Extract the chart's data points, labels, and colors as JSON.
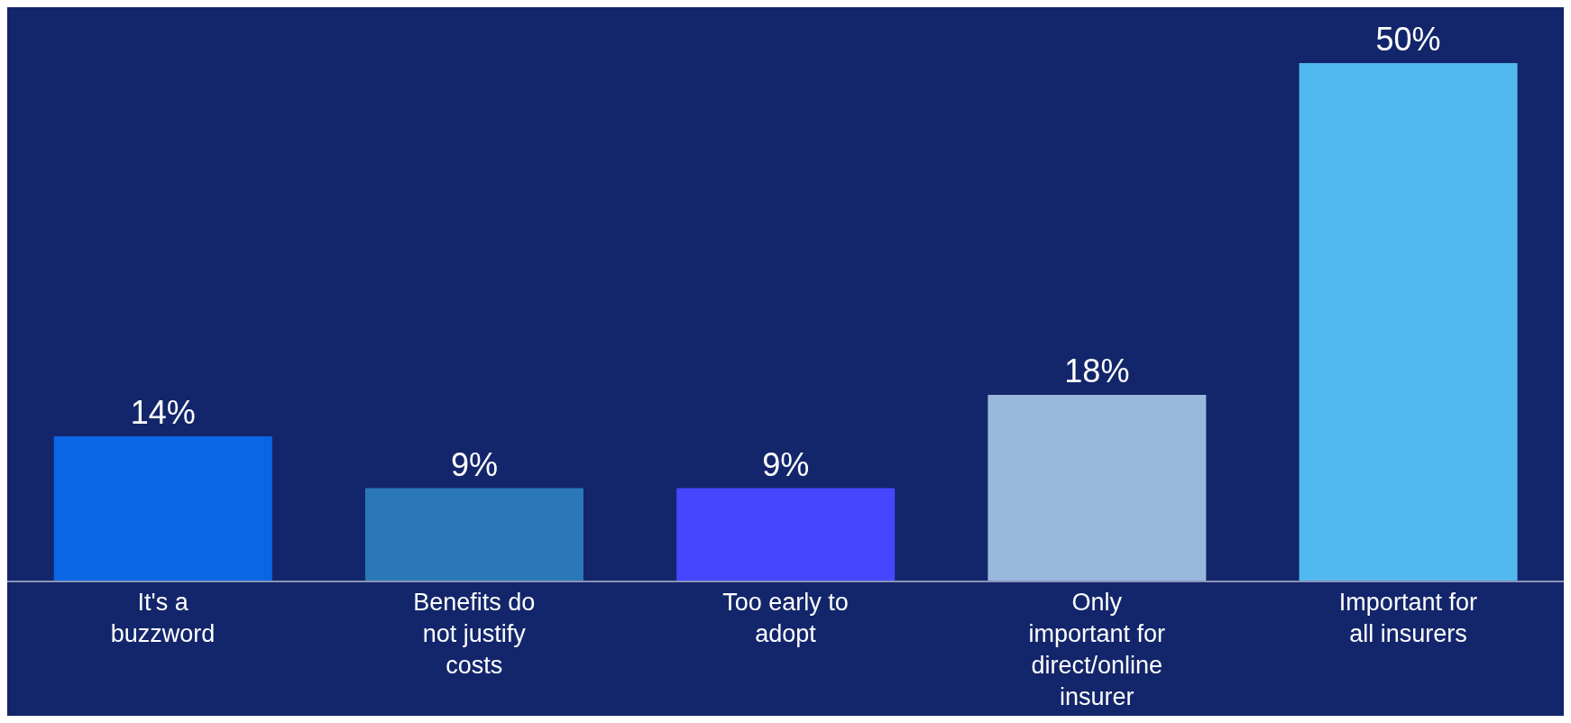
{
  "chart_data": {
    "type": "bar",
    "categories": [
      "It's a buzzword",
      "Benefits do not justify costs",
      "Too early to adopt",
      "Only important for direct/online insurer",
      "Important for all insurers"
    ],
    "values": [
      14,
      9,
      9,
      18,
      50
    ],
    "colors": [
      "#0a66e4",
      "#2b78b8",
      "#4646ff",
      "#98b8dc",
      "#52b8f0"
    ],
    "value_labels": [
      "14%",
      "9%",
      "9%",
      "18%",
      "50%"
    ]
  }
}
